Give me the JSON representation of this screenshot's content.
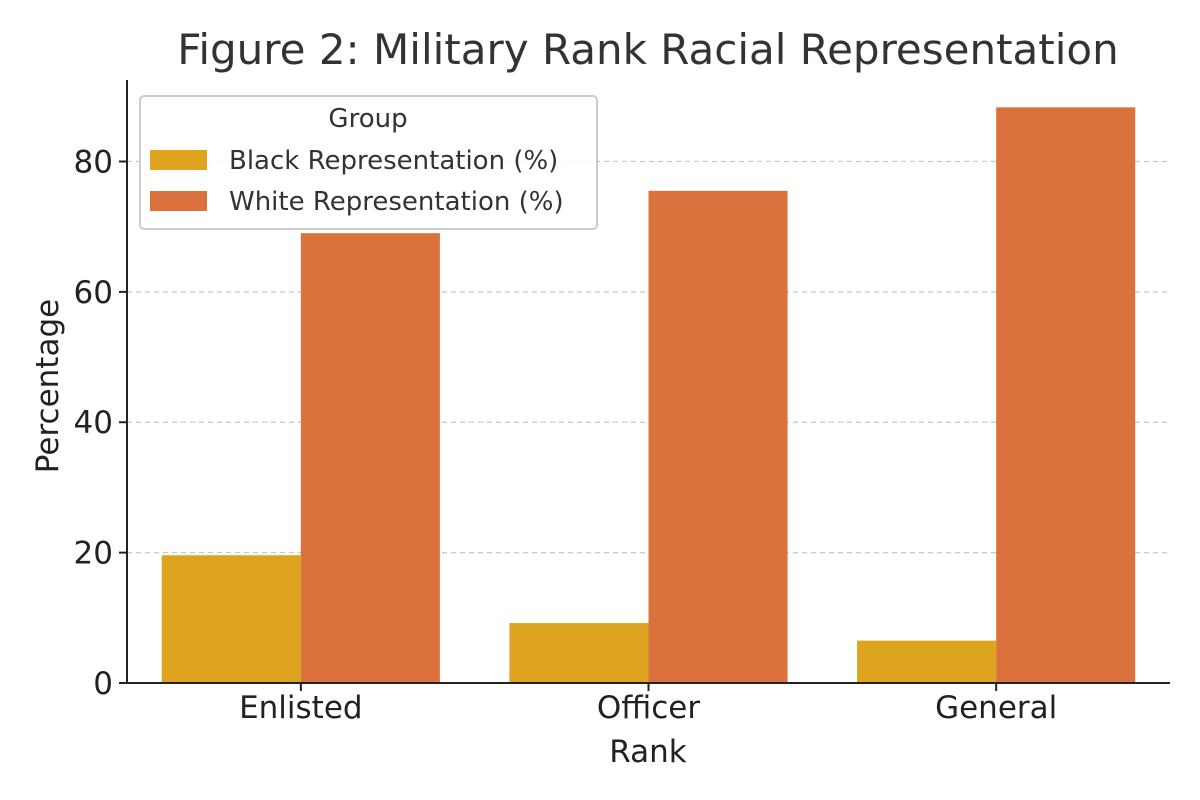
{
  "chart_data": {
    "type": "bar",
    "title": "Figure 2: Military Rank Racial Representation",
    "xlabel": "Rank",
    "ylabel": "Percentage",
    "categories": [
      "Enlisted",
      "Officer",
      "General"
    ],
    "series": [
      {
        "name": "Black Representation (%)",
        "values": [
          19.6,
          9.2,
          6.5
        ],
        "color": "#DEA31F"
      },
      {
        "name": "White Representation (%)",
        "values": [
          69.0,
          75.5,
          88.3
        ],
        "color": "#DB713C"
      }
    ],
    "ylim": [
      0,
      92.5
    ],
    "yticks": [
      0,
      20,
      40,
      60,
      80
    ],
    "ytick_labels": [
      "0",
      "20",
      "40",
      "60",
      "80"
    ],
    "grid": "y-dashed",
    "legend": {
      "title": "Group",
      "position": "top-left"
    },
    "colors": {
      "text": "#333333",
      "axis": "#222222",
      "grid": "#c8c8c8",
      "legend_border": "#cccccc"
    }
  }
}
